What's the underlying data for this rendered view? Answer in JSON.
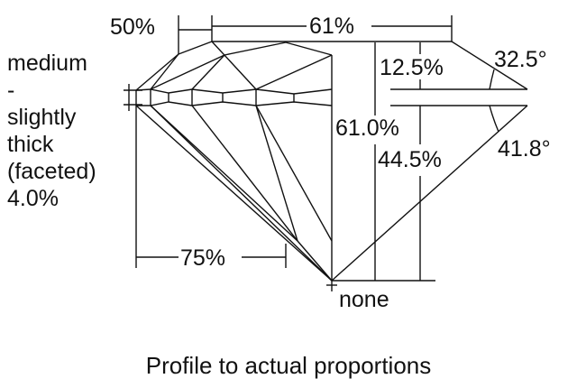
{
  "diagram": {
    "crown_angle_label": "32.5°",
    "pavilion_angle_label": "41.8°",
    "table_label": "61%",
    "star_length_label": "50%",
    "lower_half_label": "75%",
    "crown_height_label": "12.5%",
    "total_depth_label": "61.0%",
    "pavilion_depth_label": "44.5%",
    "culet_label": "none",
    "girdle_label_lines": [
      "medium",
      "-",
      "slightly",
      "thick",
      "(faceted)",
      "4.0%"
    ],
    "caption": "Profile to actual proportions",
    "line_color": "#111111"
  }
}
